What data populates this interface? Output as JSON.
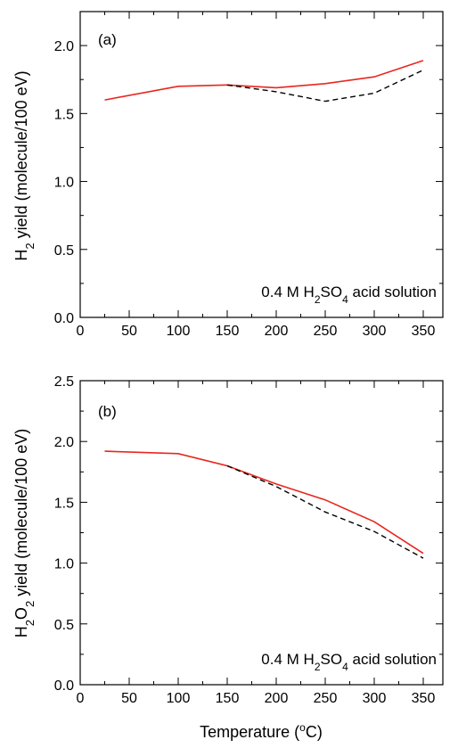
{
  "chart_data": [
    {
      "type": "line",
      "panel_label": "(a)",
      "ylabel": {
        "pre": "H",
        "sub": "2",
        "post": " yield (molecule/100 eV)"
      },
      "annotation": {
        "t1": "0.4 M H",
        "s1": "2",
        "t2": "SO",
        "s2": "4",
        "t3": " acid solution"
      },
      "xlim": [
        0,
        370
      ],
      "ylim": [
        0,
        2.25
      ],
      "xticks": [
        0,
        50,
        100,
        150,
        200,
        250,
        300,
        350
      ],
      "yticks": [
        0.0,
        0.5,
        1.0,
        1.5,
        2.0
      ],
      "ytick_labels": [
        "0.0",
        "0.5",
        "1.0",
        "1.5",
        "2.0"
      ],
      "series": [
        {
          "style": "solid",
          "color": "#e8261e",
          "x": [
            25,
            100,
            150,
            200,
            250,
            300,
            350
          ],
          "y": [
            1.6,
            1.7,
            1.71,
            1.69,
            1.72,
            1.77,
            1.89
          ]
        },
        {
          "style": "dashed",
          "color": "#000000",
          "x": [
            150,
            200,
            250,
            300,
            350
          ],
          "y": [
            1.71,
            1.66,
            1.59,
            1.65,
            1.82
          ]
        }
      ]
    },
    {
      "type": "line",
      "panel_label": "(b)",
      "ylabel": {
        "pre": "H",
        "sub": "2",
        "mid": "O",
        "sub2": "2",
        "post": " yield (molecule/100 eV)"
      },
      "annotation": {
        "t1": "0.4 M H",
        "s1": "2",
        "t2": "SO",
        "s2": "4",
        "t3": " acid solution"
      },
      "xlabel": {
        "pre": "Temperature (",
        "sup": "o",
        "post": "C)"
      },
      "xlim": [
        0,
        370
      ],
      "ylim": [
        0,
        2.5
      ],
      "xticks": [
        0,
        50,
        100,
        150,
        200,
        250,
        300,
        350
      ],
      "yticks": [
        0.0,
        0.5,
        1.0,
        1.5,
        2.0,
        2.5
      ],
      "ytick_labels": [
        "0.0",
        "0.5",
        "1.0",
        "1.5",
        "2.0",
        "2.5"
      ],
      "series": [
        {
          "style": "solid",
          "color": "#e8261e",
          "x": [
            25,
            100,
            150,
            200,
            250,
            300,
            350
          ],
          "y": [
            1.92,
            1.9,
            1.8,
            1.65,
            1.52,
            1.34,
            1.08
          ]
        },
        {
          "style": "dashed",
          "color": "#000000",
          "x": [
            150,
            200,
            250,
            300,
            350
          ],
          "y": [
            1.8,
            1.63,
            1.42,
            1.26,
            1.04
          ]
        }
      ]
    }
  ]
}
